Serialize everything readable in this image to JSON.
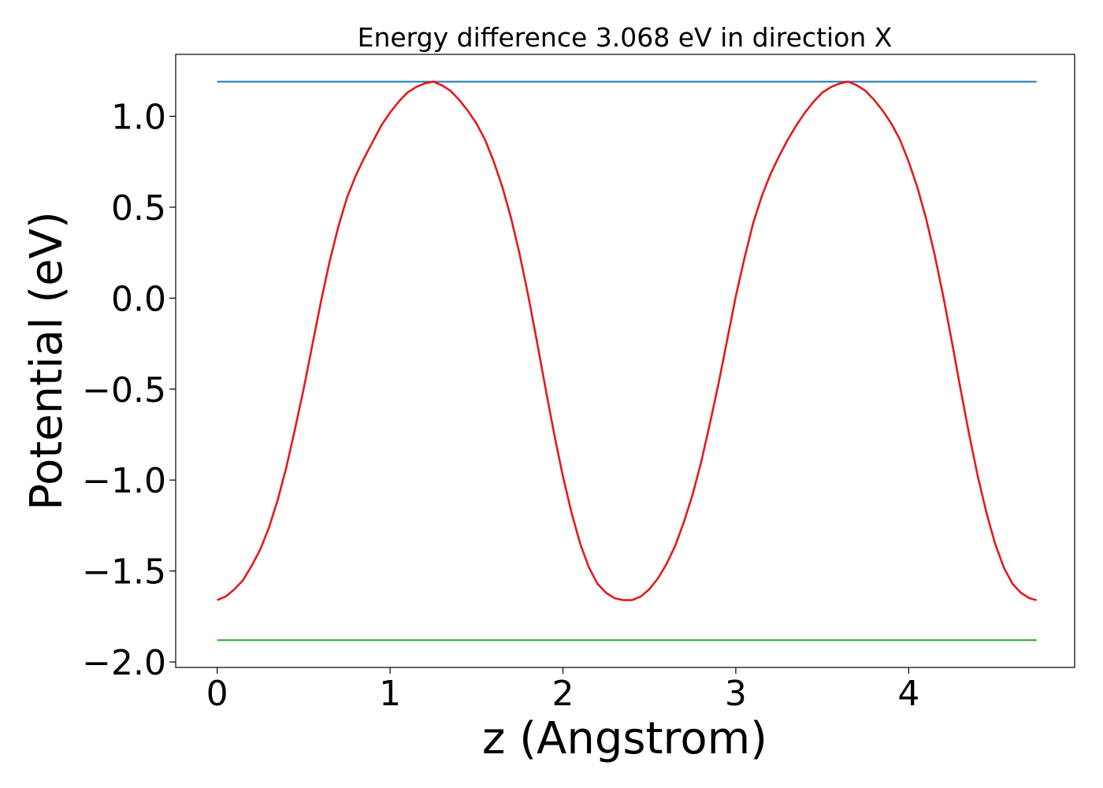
{
  "chart_data": {
    "type": "line",
    "title": "Energy difference 3.068 eV in direction X",
    "xlabel": "z (Angstrom)",
    "ylabel": "Potential (eV)",
    "xlim": [
      -0.24,
      4.96
    ],
    "ylim": [
      -2.03,
      1.34
    ],
    "xticks": [
      0,
      1,
      2,
      3,
      4
    ],
    "xtick_labels": [
      "0",
      "1",
      "2",
      "3",
      "4"
    ],
    "yticks": [
      -2.0,
      -1.5,
      -1.0,
      -0.5,
      0.0,
      0.5,
      1.0
    ],
    "ytick_labels": [
      "−2.0",
      "−1.5",
      "−1.0",
      "−0.5",
      "0.0",
      "0.5",
      "1.0"
    ],
    "grid": false,
    "colors": {
      "potential": "#e31a1c",
      "upper": "#1f77b4",
      "lower": "#2ca02c"
    },
    "series": [
      {
        "x": [
          0,
          0.05,
          0.1,
          0.15,
          0.2,
          0.25,
          0.3,
          0.35,
          0.4,
          0.45,
          0.5,
          0.55,
          0.6,
          0.65,
          0.7,
          0.75,
          0.8,
          0.85,
          0.9,
          0.95,
          1.0,
          1.05,
          1.1,
          1.15,
          1.2,
          1.25,
          1.3,
          1.35,
          1.4,
          1.45,
          1.5,
          1.55,
          1.6,
          1.65,
          1.7,
          1.75,
          1.8,
          1.85,
          1.9,
          1.95,
          2.0,
          2.05,
          2.1,
          2.15,
          2.2,
          2.25,
          2.3,
          2.35,
          2.4,
          2.45,
          2.5,
          2.55,
          2.6,
          2.65,
          2.7,
          2.75,
          2.8,
          2.85,
          2.9,
          2.95,
          3.0,
          3.05,
          3.1,
          3.15,
          3.2,
          3.25,
          3.3,
          3.35,
          3.4,
          3.45,
          3.5,
          3.55,
          3.6,
          3.65,
          3.7,
          3.75,
          3.8,
          3.85,
          3.9,
          3.95,
          4.0,
          4.05,
          4.1,
          4.15,
          4.2,
          4.25,
          4.3,
          4.35,
          4.4,
          4.45,
          4.5,
          4.55,
          4.6,
          4.65,
          4.7,
          4.74
        ],
        "y": [
          -1.66,
          -1.64,
          -1.6,
          -1.55,
          -1.47,
          -1.38,
          -1.26,
          -1.11,
          -0.93,
          -0.72,
          -0.5,
          -0.26,
          -0.02,
          0.2,
          0.39,
          0.55,
          0.67,
          0.77,
          0.86,
          0.95,
          1.02,
          1.08,
          1.13,
          1.16,
          1.18,
          1.19,
          1.17,
          1.14,
          1.09,
          1.03,
          0.96,
          0.87,
          0.75,
          0.61,
          0.44,
          0.24,
          0.01,
          -0.24,
          -0.5,
          -0.75,
          -0.98,
          -1.18,
          -1.35,
          -1.48,
          -1.57,
          -1.62,
          -1.65,
          -1.66,
          -1.66,
          -1.64,
          -1.6,
          -1.54,
          -1.46,
          -1.36,
          -1.23,
          -1.08,
          -0.9,
          -0.69,
          -0.47,
          -0.23,
          0.01,
          0.22,
          0.41,
          0.56,
          0.68,
          0.78,
          0.87,
          0.95,
          1.02,
          1.08,
          1.13,
          1.16,
          1.18,
          1.19,
          1.17,
          1.14,
          1.09,
          1.03,
          0.96,
          0.87,
          0.75,
          0.61,
          0.44,
          0.24,
          0.01,
          -0.24,
          -0.5,
          -0.75,
          -0.98,
          -1.18,
          -1.35,
          -1.48,
          -1.57,
          -1.62,
          -1.65,
          -1.66
        ]
      },
      {
        "x": [
          0,
          4.74
        ],
        "y": [
          1.19,
          1.19
        ]
      },
      {
        "x": [
          0,
          4.74
        ],
        "y": [
          -1.88,
          -1.88
        ]
      }
    ]
  }
}
